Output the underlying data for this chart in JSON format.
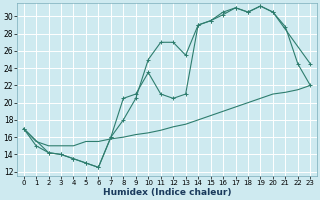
{
  "xlabel": "Humidex (Indice chaleur)",
  "bg_color": "#ceeaf0",
  "grid_color": "#b0d8e0",
  "line_color": "#2e7d6e",
  "xlim": [
    -0.5,
    23.5
  ],
  "ylim": [
    11.5,
    31.5
  ],
  "xticks": [
    0,
    1,
    2,
    3,
    4,
    5,
    6,
    7,
    8,
    9,
    10,
    11,
    12,
    13,
    14,
    15,
    16,
    17,
    18,
    19,
    20,
    21,
    22,
    23
  ],
  "yticks": [
    12,
    14,
    16,
    18,
    20,
    22,
    24,
    26,
    28,
    30
  ],
  "line1_x": [
    0,
    1,
    2,
    3,
    4,
    5,
    6,
    7,
    8,
    9,
    10,
    11,
    12,
    13,
    14,
    15,
    16,
    17,
    18,
    19,
    20,
    21,
    22,
    23
  ],
  "line1_y": [
    17.0,
    15.0,
    14.2,
    14.0,
    13.5,
    13.0,
    12.5,
    16.0,
    18.0,
    20.5,
    25.0,
    27.0,
    27.0,
    25.5,
    29.0,
    29.5,
    30.2,
    31.0,
    30.5,
    31.2,
    30.5,
    28.8,
    24.5,
    22.0
  ],
  "line2_x": [
    0,
    2,
    3,
    4,
    5,
    6,
    7,
    8,
    9,
    10,
    11,
    12,
    13,
    14,
    15,
    16,
    17,
    18,
    19,
    20,
    23
  ],
  "line2_y": [
    17.0,
    14.2,
    14.0,
    13.5,
    13.0,
    12.5,
    16.0,
    20.5,
    21.0,
    23.5,
    21.0,
    20.5,
    21.0,
    29.0,
    29.5,
    30.5,
    31.0,
    30.5,
    31.2,
    30.5,
    24.5
  ],
  "line3_x": [
    0,
    1,
    2,
    3,
    4,
    5,
    6,
    7,
    8,
    9,
    10,
    11,
    12,
    13,
    14,
    15,
    16,
    17,
    18,
    19,
    20,
    21,
    22,
    23
  ],
  "line3_y": [
    17.0,
    15.5,
    15.0,
    15.0,
    15.0,
    15.5,
    15.5,
    15.8,
    16.0,
    16.3,
    16.5,
    16.8,
    17.2,
    17.5,
    18.0,
    18.5,
    19.0,
    19.5,
    20.0,
    20.5,
    21.0,
    21.2,
    21.5,
    22.0
  ]
}
